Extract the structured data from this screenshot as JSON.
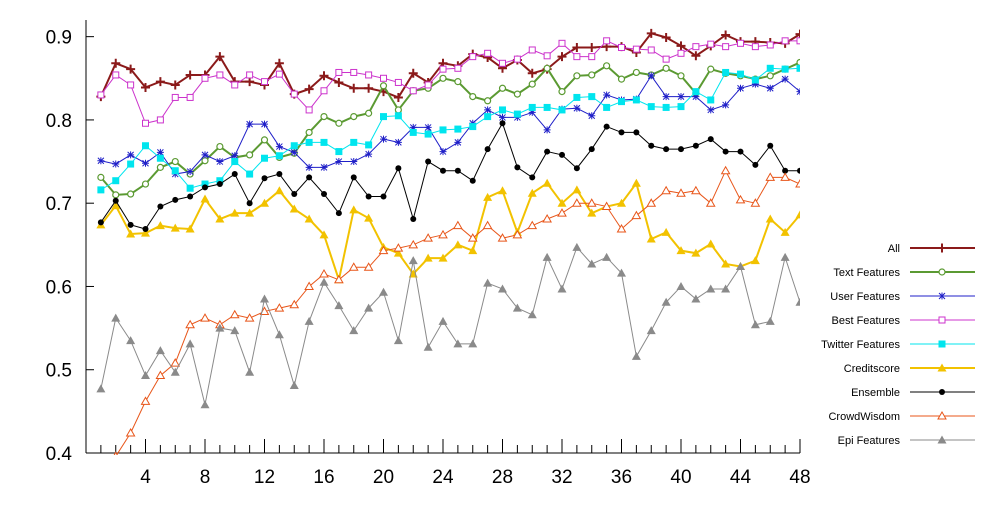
{
  "chart_data": {
    "type": "line",
    "title": "",
    "xlabel": "",
    "ylabel": "",
    "xlim": [
      0,
      48
    ],
    "ylim": [
      0.4,
      0.92
    ],
    "x_ticks": [
      4,
      8,
      12,
      16,
      20,
      24,
      28,
      32,
      36,
      40,
      44,
      48
    ],
    "y_ticks": [
      0.4,
      0.5,
      0.6,
      0.7,
      0.8,
      0.9
    ],
    "x_tick_labels": [
      "4",
      "8",
      "12",
      "16",
      "20",
      "24",
      "28",
      "32",
      "36",
      "40",
      "44",
      "48"
    ],
    "y_tick_labels": [
      "0.4",
      "0.5",
      "0.6",
      "0.7",
      "0.8",
      "0.9"
    ],
    "grid": false,
    "legend_position": "right",
    "x": [
      1,
      2,
      3,
      4,
      5,
      6,
      7,
      8,
      9,
      10,
      11,
      12,
      13,
      14,
      15,
      16,
      17,
      18,
      19,
      20,
      21,
      22,
      23,
      24,
      25,
      26,
      27,
      28,
      29,
      30,
      31,
      32,
      33,
      34,
      35,
      36,
      37,
      38,
      39,
      40,
      41,
      42,
      43,
      44,
      45,
      46,
      47,
      48
    ],
    "series": [
      {
        "name": "All",
        "color": "#8b1a1a",
        "marker": "plus",
        "values": [
          0.828,
          0.868,
          0.861,
          0.839,
          0.846,
          0.842,
          0.854,
          0.854,
          0.876,
          0.846,
          0.846,
          0.842,
          0.868,
          0.831,
          0.837,
          0.853,
          0.845,
          0.838,
          0.838,
          0.834,
          0.827,
          0.856,
          0.845,
          0.868,
          0.865,
          0.879,
          0.875,
          0.862,
          0.872,
          0.856,
          0.861,
          0.876,
          0.887,
          0.887,
          0.888,
          0.888,
          0.881,
          0.904,
          0.899,
          0.889,
          0.877,
          0.889,
          0.902,
          0.894,
          0.894,
          0.893,
          0.892,
          0.903
        ]
      },
      {
        "name": "Text Features",
        "color": "#5b9a32",
        "marker": "circle-open",
        "values": [
          0.731,
          0.71,
          0.711,
          0.723,
          0.743,
          0.75,
          0.735,
          0.751,
          0.768,
          0.755,
          0.758,
          0.776,
          0.755,
          0.76,
          0.785,
          0.804,
          0.796,
          0.804,
          0.808,
          0.841,
          0.812,
          0.835,
          0.838,
          0.85,
          0.846,
          0.828,
          0.823,
          0.838,
          0.831,
          0.843,
          0.862,
          0.834,
          0.853,
          0.854,
          0.865,
          0.849,
          0.857,
          0.854,
          0.862,
          0.853,
          0.832,
          0.861,
          0.856,
          0.853,
          0.849,
          0.853,
          0.861,
          0.869
        ]
      },
      {
        "name": "User Features",
        "color": "#1f1fc8",
        "marker": "star",
        "values": [
          0.751,
          0.747,
          0.758,
          0.748,
          0.761,
          0.735,
          0.738,
          0.758,
          0.75,
          0.757,
          0.795,
          0.795,
          0.768,
          0.761,
          0.743,
          0.743,
          0.75,
          0.75,
          0.759,
          0.777,
          0.773,
          0.791,
          0.791,
          0.762,
          0.773,
          0.796,
          0.812,
          0.803,
          0.803,
          0.809,
          0.788,
          0.813,
          0.814,
          0.805,
          0.83,
          0.824,
          0.825,
          0.853,
          0.828,
          0.828,
          0.828,
          0.812,
          0.818,
          0.838,
          0.843,
          0.838,
          0.849,
          0.834
        ]
      },
      {
        "name": "Best Features",
        "color": "#cc33cc",
        "marker": "square-open",
        "values": [
          0.83,
          0.854,
          0.842,
          0.796,
          0.8,
          0.827,
          0.827,
          0.85,
          0.854,
          0.842,
          0.854,
          0.846,
          0.855,
          0.831,
          0.812,
          0.835,
          0.857,
          0.857,
          0.854,
          0.85,
          0.845,
          0.835,
          0.842,
          0.861,
          0.862,
          0.876,
          0.88,
          0.868,
          0.873,
          0.884,
          0.877,
          0.892,
          0.876,
          0.876,
          0.895,
          0.887,
          0.885,
          0.884,
          0.873,
          0.88,
          0.888,
          0.891,
          0.888,
          0.892,
          0.888,
          0.89,
          0.895,
          0.895
        ]
      },
      {
        "name": "Twitter Features",
        "color": "#00e5ee",
        "marker": "square-filled",
        "values": [
          0.716,
          0.727,
          0.747,
          0.769,
          0.754,
          0.739,
          0.718,
          0.723,
          0.727,
          0.75,
          0.735,
          0.754,
          0.757,
          0.769,
          0.773,
          0.773,
          0.762,
          0.773,
          0.77,
          0.804,
          0.805,
          0.785,
          0.783,
          0.788,
          0.789,
          0.792,
          0.804,
          0.812,
          0.807,
          0.815,
          0.815,
          0.812,
          0.827,
          0.828,
          0.815,
          0.822,
          0.824,
          0.816,
          0.815,
          0.816,
          0.834,
          0.824,
          0.857,
          0.855,
          0.848,
          0.862,
          0.861,
          0.862
        ]
      },
      {
        "name": "Creditscore",
        "color": "#f2c200",
        "marker": "triangle-filled",
        "values": [
          0.674,
          0.697,
          0.663,
          0.664,
          0.673,
          0.67,
          0.669,
          0.705,
          0.681,
          0.688,
          0.688,
          0.7,
          0.715,
          0.693,
          0.681,
          0.662,
          0.608,
          0.692,
          0.682,
          0.647,
          0.64,
          0.615,
          0.634,
          0.634,
          0.65,
          0.643,
          0.707,
          0.715,
          0.665,
          0.712,
          0.724,
          0.7,
          0.716,
          0.688,
          0.696,
          0.7,
          0.724,
          0.657,
          0.665,
          0.643,
          0.64,
          0.651,
          0.627,
          0.624,
          0.631,
          0.681,
          0.665,
          0.686
        ]
      },
      {
        "name": "Ensemble",
        "color": "#000000",
        "marker": "circle-filled",
        "values": [
          0.677,
          0.703,
          0.674,
          0.669,
          0.696,
          0.704,
          0.708,
          0.719,
          0.723,
          0.735,
          0.7,
          0.73,
          0.735,
          0.711,
          0.731,
          0.711,
          0.688,
          0.731,
          0.708,
          0.708,
          0.742,
          0.681,
          0.75,
          0.739,
          0.739,
          0.727,
          0.765,
          0.796,
          0.743,
          0.731,
          0.762,
          0.758,
          0.742,
          0.765,
          0.792,
          0.785,
          0.785,
          0.769,
          0.765,
          0.765,
          0.769,
          0.777,
          0.762,
          0.762,
          0.746,
          0.769,
          0.739,
          0.739
        ]
      },
      {
        "name": "CrowdWisdom",
        "color": "#e8561a",
        "marker": "triangle-open",
        "values": [
          0.37,
          0.396,
          0.424,
          0.462,
          0.493,
          0.508,
          0.554,
          0.562,
          0.554,
          0.566,
          0.562,
          0.57,
          0.574,
          0.578,
          0.6,
          0.615,
          0.608,
          0.623,
          0.623,
          0.643,
          0.646,
          0.65,
          0.658,
          0.662,
          0.673,
          0.658,
          0.673,
          0.658,
          0.662,
          0.673,
          0.681,
          0.688,
          0.7,
          0.7,
          0.696,
          0.669,
          0.685,
          0.7,
          0.715,
          0.712,
          0.715,
          0.7,
          0.739,
          0.704,
          0.7,
          0.731,
          0.731,
          0.723
        ]
      },
      {
        "name": "Epi Features",
        "color": "#8a8a8a",
        "marker": "triangle-filled",
        "values": [
          0.477,
          0.562,
          0.535,
          0.493,
          0.523,
          0.497,
          0.531,
          0.458,
          0.55,
          0.547,
          0.497,
          0.585,
          0.542,
          0.481,
          0.558,
          0.605,
          0.577,
          0.547,
          0.574,
          0.593,
          0.535,
          0.631,
          0.527,
          0.558,
          0.531,
          0.531,
          0.604,
          0.597,
          0.574,
          0.566,
          0.635,
          0.597,
          0.647,
          0.627,
          0.635,
          0.616,
          0.516,
          0.547,
          0.581,
          0.6,
          0.585,
          0.597,
          0.597,
          0.624,
          0.554,
          0.558,
          0.635,
          0.581
        ]
      }
    ]
  }
}
